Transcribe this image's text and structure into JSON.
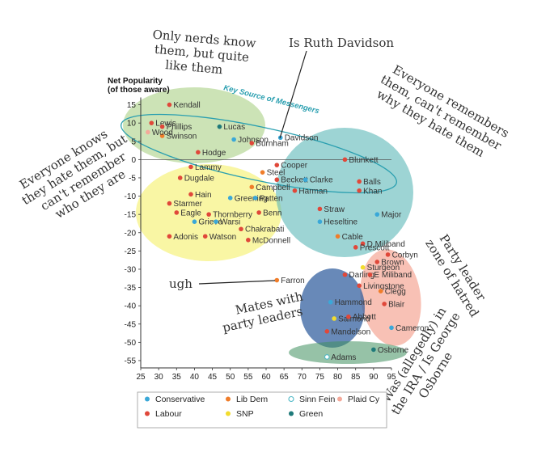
{
  "chart_data": {
    "type": "scatter",
    "ylabel_line1": "Net Popularity",
    "ylabel_line2": "(of those aware)",
    "xlim": [
      25,
      95
    ],
    "ylim": [
      -57,
      18
    ],
    "xticks": [
      "25",
      "30",
      "35",
      "40",
      "45",
      "50",
      "55",
      "60",
      "65",
      "70",
      "75",
      "80",
      "85",
      "90",
      "95"
    ],
    "yticks": [
      "15",
      "10",
      "5",
      "0",
      "-5",
      "-10",
      "-15",
      "-20",
      "-25",
      "-30",
      "-35",
      "-40",
      "-45",
      "-50",
      "-55"
    ],
    "legend": [
      {
        "name": "Conservative",
        "color": "#3aa8d8",
        "hollow": false
      },
      {
        "name": "Lib Dem",
        "color": "#f07d2a",
        "hollow": false
      },
      {
        "name": "Sinn Fein",
        "color": "#4db8c6",
        "hollow": true
      },
      {
        "name": "Plaid Cy",
        "color": "#f4a99a",
        "hollow": false
      },
      {
        "name": "Labour",
        "color": "#e0483a",
        "hollow": false
      },
      {
        "name": "SNP",
        "color": "#f2dc2e",
        "hollow": false
      },
      {
        "name": "Green",
        "color": "#1f7a7a",
        "hollow": false
      }
    ],
    "points": [
      {
        "name": "Kendall",
        "x": 33,
        "y": 15,
        "party": "Labour"
      },
      {
        "name": "Lewis",
        "x": 28,
        "y": 10,
        "party": "Labour"
      },
      {
        "name": "Lucas",
        "x": 47,
        "y": 9,
        "party": "Green"
      },
      {
        "name": "Phillips",
        "x": 31,
        "y": 9,
        "party": "Labour"
      },
      {
        "name": "Swinson",
        "x": 31,
        "y": 6.5,
        "party": "Lib Dem"
      },
      {
        "name": "Johnson",
        "x": 51,
        "y": 5.5,
        "party": "Conservative"
      },
      {
        "name": "Wood",
        "x": 27,
        "y": 7.5,
        "party": "Plaid Cy"
      },
      {
        "name": "Burnham",
        "x": 56,
        "y": 4.5,
        "party": "Labour"
      },
      {
        "name": "Hodge",
        "x": 41,
        "y": 2,
        "party": "Labour"
      },
      {
        "name": "Davidson",
        "x": 64,
        "y": 6,
        "party": "Conservative"
      },
      {
        "name": "Blunkett",
        "x": 82,
        "y": 0,
        "party": "Labour"
      },
      {
        "name": "Lammy",
        "x": 39,
        "y": -2,
        "party": "Labour"
      },
      {
        "name": "Cooper",
        "x": 63,
        "y": -1.5,
        "party": "Labour"
      },
      {
        "name": "Steel",
        "x": 59,
        "y": -3.5,
        "party": "Lib Dem"
      },
      {
        "name": "Dugdale",
        "x": 36,
        "y": -5,
        "party": "Labour"
      },
      {
        "name": "Beckett",
        "x": 63,
        "y": -5.5,
        "party": "Labour"
      },
      {
        "name": "Clarke",
        "x": 71,
        "y": -5.5,
        "party": "Conservative"
      },
      {
        "name": "Campbell",
        "x": 56,
        "y": -7.5,
        "party": "Lib Dem"
      },
      {
        "name": "Harman",
        "x": 68,
        "y": -8.5,
        "party": "Labour"
      },
      {
        "name": "Balls",
        "x": 86,
        "y": -6,
        "party": "Labour"
      },
      {
        "name": "Hain",
        "x": 39,
        "y": -9.5,
        "party": "Labour"
      },
      {
        "name": "Greening",
        "x": 50,
        "y": -10.5,
        "party": "Conservative"
      },
      {
        "name": "Patten",
        "x": 57,
        "y": -10.5,
        "party": "Conservative"
      },
      {
        "name": "Khan",
        "x": 86,
        "y": -8.5,
        "party": "Labour"
      },
      {
        "name": "Starmer",
        "x": 33,
        "y": -12,
        "party": "Labour"
      },
      {
        "name": "Eagle",
        "x": 35,
        "y": -14.5,
        "party": "Labour"
      },
      {
        "name": "Thornberry",
        "x": 44,
        "y": -15,
        "party": "Labour"
      },
      {
        "name": "Benn",
        "x": 58,
        "y": -14.5,
        "party": "Labour"
      },
      {
        "name": "Straw",
        "x": 75,
        "y": -13.5,
        "party": "Labour"
      },
      {
        "name": "Major",
        "x": 91,
        "y": -15,
        "party": "Conservative"
      },
      {
        "name": "Grieve",
        "x": 40,
        "y": -17,
        "party": "Conservative"
      },
      {
        "name": "Warsi",
        "x": 46,
        "y": -17,
        "party": "Conservative"
      },
      {
        "name": "Heseltine",
        "x": 75,
        "y": -17,
        "party": "Conservative"
      },
      {
        "name": "Chakrabati",
        "x": 53,
        "y": -19,
        "party": "Labour"
      },
      {
        "name": "Adonis",
        "x": 33,
        "y": -21,
        "party": "Labour"
      },
      {
        "name": "Watson",
        "x": 43,
        "y": -21,
        "party": "Labour"
      },
      {
        "name": "McDonnell",
        "x": 55,
        "y": -22,
        "party": "Labour"
      },
      {
        "name": "Cable",
        "x": 80,
        "y": -21,
        "party": "Lib Dem"
      },
      {
        "name": "D Miliband",
        "x": 87,
        "y": -23,
        "party": "Labour"
      },
      {
        "name": "Prescott",
        "x": 85,
        "y": -24,
        "party": "Labour"
      },
      {
        "name": "Corbyn",
        "x": 94,
        "y": -26,
        "party": "Labour"
      },
      {
        "name": "Brown",
        "x": 91,
        "y": -28,
        "party": "Labour"
      },
      {
        "name": "Sturgeon",
        "x": 87,
        "y": -29.5,
        "party": "SNP"
      },
      {
        "name": "Darling",
        "x": 82,
        "y": -31.5,
        "party": "Labour"
      },
      {
        "name": "E Miliband",
        "x": 89,
        "y": -31.5,
        "party": "Labour"
      },
      {
        "name": "Livingstone",
        "x": 86,
        "y": -34.5,
        "party": "Labour"
      },
      {
        "name": "Farron",
        "x": 63,
        "y": -33,
        "party": "Lib Dem"
      },
      {
        "name": "Clegg",
        "x": 92,
        "y": -36,
        "party": "Lib Dem"
      },
      {
        "name": "Hammond",
        "x": 78,
        "y": -39,
        "party": "Conservative"
      },
      {
        "name": "Blair",
        "x": 93,
        "y": -39.5,
        "party": "Labour"
      },
      {
        "name": "Salmond",
        "x": 79,
        "y": -43.5,
        "party": "SNP"
      },
      {
        "name": "Abbott",
        "x": 83,
        "y": -43,
        "party": "Labour"
      },
      {
        "name": "Cameron",
        "x": 95,
        "y": -46,
        "party": "Conservative"
      },
      {
        "name": "Mandelson",
        "x": 77,
        "y": -47,
        "party": "Labour"
      },
      {
        "name": "Osborne",
        "x": 90,
        "y": -52,
        "party": "Green"
      },
      {
        "name": "Adams",
        "x": 77,
        "y": -54,
        "party": "Sinn Fein"
      }
    ],
    "annotations": {
      "nerds": [
        "Only nerds know",
        "them, but quite",
        "like them"
      ],
      "ruth": "Is Ruth Davidson",
      "key_source": "Key Source of Messengers",
      "remembers": [
        "Everyone remembers",
        "them, can't remember",
        "why they hate them"
      ],
      "knows": [
        "Everyone knows",
        "they hate them, but",
        "can't remember",
        "who they are"
      ],
      "ugh": "ugh",
      "mates": [
        "Mates with",
        "party leaders"
      ],
      "zone": [
        "Party leader",
        "zone of hatred"
      ],
      "ira": [
        "Was (allegedly) in",
        "the IRA / Is George",
        "Osborne"
      ]
    }
  }
}
